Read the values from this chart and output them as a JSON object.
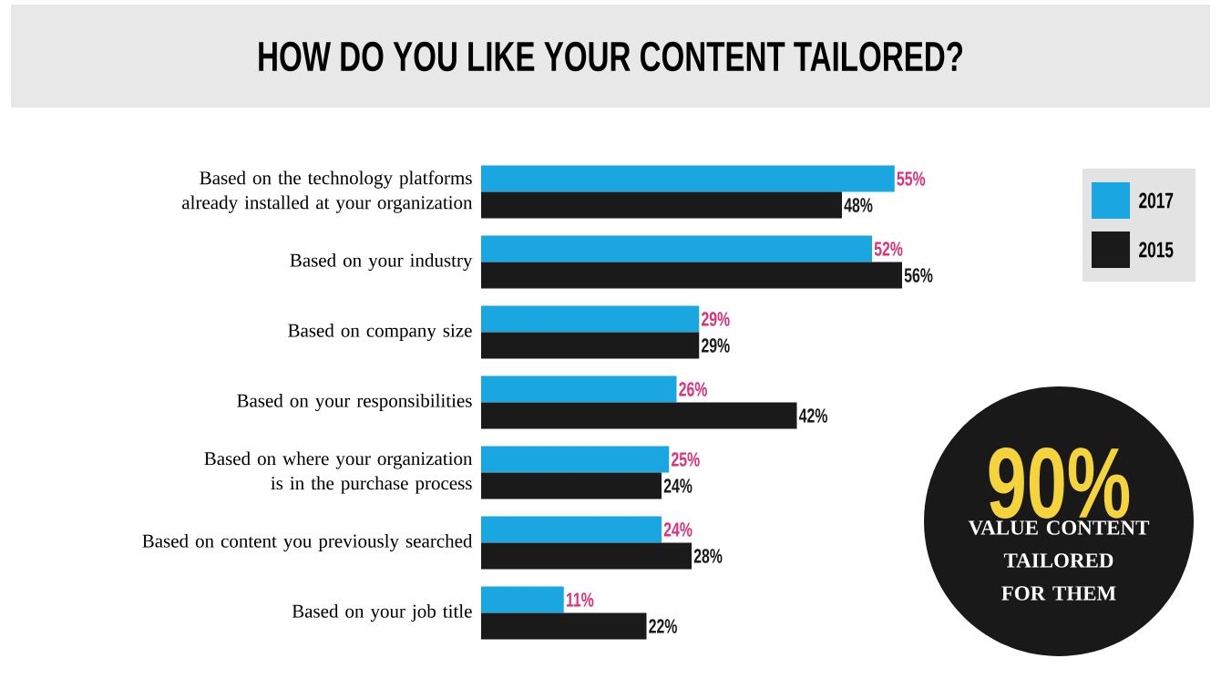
{
  "chart_data": {
    "type": "bar",
    "orientation": "horizontal",
    "title": "HOW DO YOU LIKE YOUR CONTENT TAILORED?",
    "categories": [
      "Based on the technology platforms already installed at your organization",
      "Based on your industry",
      "Based on company size",
      "Based on your responsibilities",
      "Based on where your organization is in the purchase process",
      "Based on content you previously searched",
      "Based on your job title"
    ],
    "series": [
      {
        "name": "2017",
        "color": "#1aa6e0",
        "values": [
          55,
          52,
          29,
          26,
          25,
          24,
          11
        ],
        "value_labels": [
          "55%",
          "52%",
          "29%",
          "26%",
          "25%",
          "24%",
          "11%"
        ]
      },
      {
        "name": "2015",
        "color": "#1a1a1a",
        "values": [
          48,
          56,
          29,
          42,
          24,
          28,
          22
        ],
        "value_labels": [
          "48%",
          "56%",
          "29%",
          "42%",
          "24%",
          "28%",
          "22%"
        ]
      }
    ],
    "legend": "top right",
    "annotations": [
      "90%",
      "VALUE CONTENT TAILORED FOR THEM"
    ]
  }
}
